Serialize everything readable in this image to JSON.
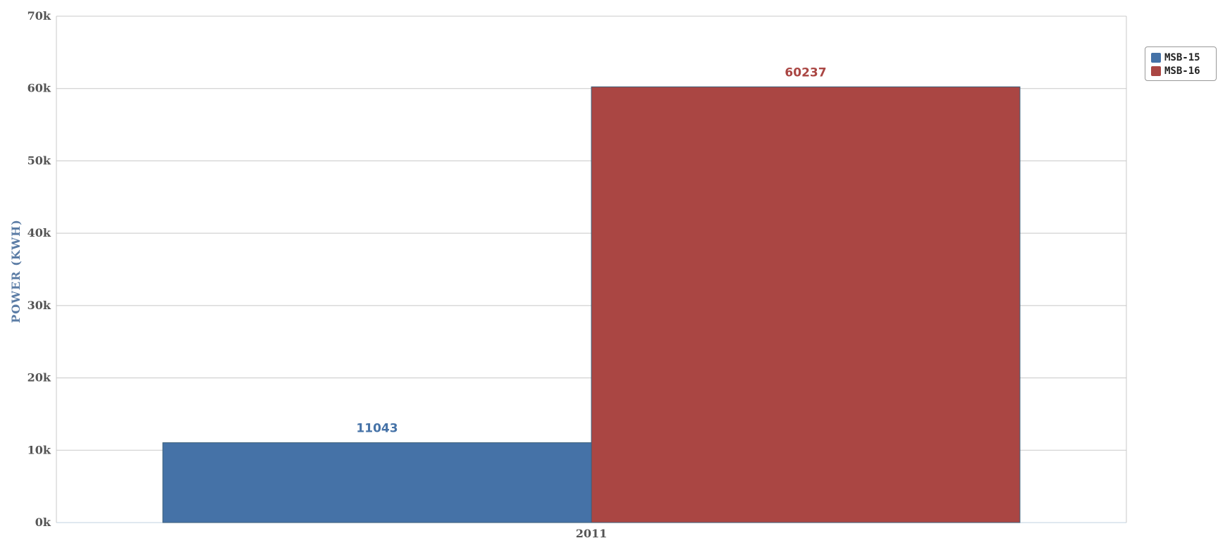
{
  "chart_data": {
    "type": "bar",
    "categories": [
      "2011"
    ],
    "series": [
      {
        "name": "MSB-15",
        "values": [
          11043
        ],
        "color": "#4572a7"
      },
      {
        "name": "MSB-16",
        "values": [
          60237
        ],
        "color": "#aa4643"
      }
    ],
    "ylabel": "POWER (KWH)",
    "xlabel": "",
    "ylim": [
      0,
      70000
    ],
    "yticks": [
      "0k",
      "10k",
      "20k",
      "30k",
      "40k",
      "50k",
      "60k",
      "70k"
    ],
    "ytick_values": [
      0,
      10000,
      20000,
      30000,
      40000,
      50000,
      60000,
      70000
    ],
    "data_labels": [
      "11043",
      "60237"
    ],
    "grid": true,
    "legend_position": "top-right"
  },
  "legend": {
    "items": [
      {
        "label": "MSB-15",
        "color": "#4572a7"
      },
      {
        "label": "MSB-16",
        "color": "#aa4643"
      }
    ]
  }
}
